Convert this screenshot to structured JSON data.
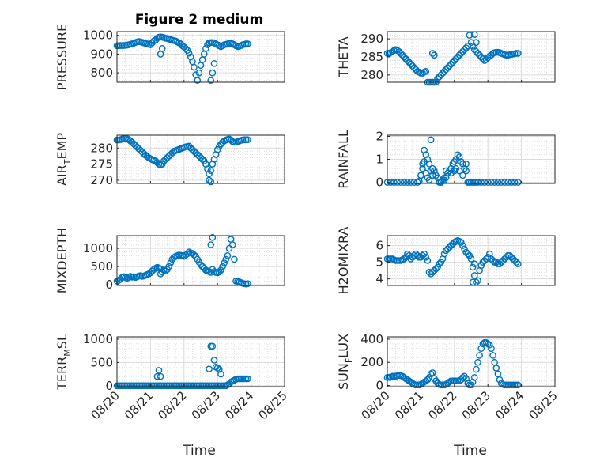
{
  "figure": {
    "title": "Figure 2 medium",
    "xlabel": "Time",
    "x_ticks": [
      "08/20",
      "08/21",
      "08/22",
      "08/23",
      "08/24",
      "08/25"
    ],
    "marker_color": "#0072BD"
  },
  "chart_data": [
    {
      "type": "scatter",
      "ylabel": "PRESSURE",
      "yticks": [
        800,
        900,
        1000
      ],
      "ylim": [
        750,
        1020
      ],
      "x": [
        0.0,
        0.05,
        0.1,
        0.15,
        0.2,
        0.25,
        0.3,
        0.35,
        0.4,
        0.45,
        0.5,
        0.55,
        0.6,
        0.65,
        0.7,
        0.75,
        0.8,
        0.85,
        0.9,
        0.95,
        1.0,
        1.05,
        1.1,
        1.15,
        1.2,
        1.25,
        1.3,
        1.35,
        1.4,
        1.45,
        1.5,
        1.55,
        1.6,
        1.65,
        1.7,
        1.75,
        1.8,
        1.85,
        1.9,
        1.95,
        2.0,
        2.05,
        2.1,
        2.15,
        2.2,
        2.25,
        2.3,
        2.35,
        2.4,
        2.45,
        2.5,
        2.55,
        2.6,
        2.65,
        2.7,
        2.75,
        2.8,
        2.85,
        2.9,
        2.95,
        3.0,
        3.05,
        3.1,
        3.15,
        3.2,
        3.25,
        3.3,
        3.35,
        3.4,
        3.45,
        3.5,
        3.55,
        3.6,
        3.65,
        3.7,
        3.75,
        3.8,
        3.85,
        3.9,
        1.3,
        1.35,
        2.8,
        2.85,
        2.9
      ],
      "values": [
        945,
        945,
        946,
        946,
        946,
        947,
        948,
        950,
        953,
        955,
        958,
        962,
        965,
        967,
        966,
        963,
        960,
        957,
        955,
        952,
        950,
        960,
        970,
        975,
        985,
        990,
        992,
        990,
        988,
        985,
        983,
        980,
        978,
        975,
        972,
        970,
        965,
        960,
        955,
        945,
        938,
        930,
        920,
        905,
        885,
        860,
        830,
        790,
        760,
        800,
        840,
        870,
        900,
        930,
        950,
        960,
        962,
        962,
        960,
        955,
        950,
        945,
        940,
        945,
        950,
        952,
        955,
        958,
        958,
        955,
        950,
        945,
        940,
        942,
        946,
        950,
        952,
        955,
        955,
        900,
        930,
        760,
        800,
        850
      ]
    },
    {
      "type": "scatter",
      "ylabel": "THETA",
      "yticks": [
        280,
        285,
        290
      ],
      "ylim": [
        278,
        292
      ],
      "x": [
        0.0,
        0.05,
        0.1,
        0.15,
        0.2,
        0.25,
        0.3,
        0.35,
        0.4,
        0.45,
        0.5,
        0.55,
        0.6,
        0.65,
        0.7,
        0.75,
        0.8,
        0.85,
        0.9,
        0.95,
        1.0,
        1.05,
        1.1,
        1.15,
        1.2,
        1.25,
        1.3,
        1.35,
        1.4,
        1.45,
        1.5,
        1.55,
        1.6,
        1.65,
        1.7,
        1.75,
        1.8,
        1.85,
        1.9,
        1.95,
        2.0,
        2.05,
        2.1,
        2.15,
        2.2,
        2.25,
        2.3,
        2.35,
        2.4,
        2.45,
        2.5,
        2.55,
        2.6,
        2.65,
        2.7,
        2.75,
        2.8,
        2.85,
        2.9,
        2.95,
        3.0,
        3.05,
        3.1,
        3.15,
        3.2,
        3.25,
        3.3,
        3.35,
        3.4,
        3.45,
        3.5,
        3.55,
        3.6,
        3.65,
        3.7,
        3.75,
        3.8,
        3.85,
        3.9,
        1.35,
        1.4,
        2.6,
        2.65
      ],
      "values": [
        286,
        286,
        286.2,
        286.5,
        286.8,
        287,
        286.8,
        286.5,
        286,
        285.5,
        285,
        284.5,
        284,
        283.5,
        283,
        282.5,
        282,
        281.5,
        281,
        280.8,
        280.5,
        280.5,
        280.8,
        281,
        278,
        277.5,
        277.3,
        277.3,
        277.5,
        278,
        279,
        279.5,
        280,
        280.5,
        281,
        281.5,
        282,
        282.5,
        283,
        283.5,
        284,
        284.5,
        285,
        285.5,
        286,
        286.5,
        287,
        287.5,
        288,
        291,
        289,
        288,
        287,
        286.5,
        286,
        285.5,
        285,
        284.5,
        284,
        284.3,
        284.8,
        285.2,
        285.5,
        286,
        286.2,
        286.3,
        286.3,
        286.2,
        286,
        285.8,
        285.6,
        285.5,
        285.5,
        285.6,
        285.7,
        285.8,
        285.9,
        286,
        286,
        286,
        285.5,
        291.2,
        289
      ]
    },
    {
      "type": "scatter",
      "ylabel": "AIR_TEMP",
      "yticks": [
        270,
        275,
        280
      ],
      "ylim": [
        269,
        284
      ],
      "x": [
        0.0,
        0.05,
        0.1,
        0.15,
        0.2,
        0.25,
        0.3,
        0.35,
        0.4,
        0.45,
        0.5,
        0.55,
        0.6,
        0.65,
        0.7,
        0.75,
        0.8,
        0.85,
        0.9,
        0.95,
        1.0,
        1.05,
        1.1,
        1.15,
        1.2,
        1.25,
        1.3,
        1.35,
        1.4,
        1.45,
        1.5,
        1.55,
        1.6,
        1.65,
        1.7,
        1.75,
        1.8,
        1.85,
        1.9,
        1.95,
        2.0,
        2.05,
        2.1,
        2.15,
        2.2,
        2.25,
        2.3,
        2.35,
        2.4,
        2.45,
        2.5,
        2.55,
        2.6,
        2.65,
        2.7,
        2.75,
        2.8,
        2.85,
        2.9,
        2.95,
        3.0,
        3.05,
        3.1,
        3.15,
        3.2,
        3.25,
        3.3,
        3.35,
        3.4,
        3.45,
        3.5,
        3.55,
        3.6,
        3.65,
        3.7,
        3.75,
        3.8,
        3.85,
        3.9,
        2.75,
        2.8
      ],
      "values": [
        282.5,
        282.5,
        282.6,
        282.8,
        283,
        283,
        282.9,
        282.6,
        282.2,
        281.8,
        281.3,
        280.8,
        280.3,
        279.8,
        279.3,
        278.8,
        278.3,
        277.8,
        277.4,
        277,
        276.7,
        276.4,
        276.2,
        276,
        275.5,
        275,
        274.8,
        275,
        276,
        276.5,
        277,
        277.5,
        278,
        278.5,
        279,
        279.2,
        279.4,
        279.6,
        279.8,
        280,
        280.2,
        280.4,
        280.5,
        280.6,
        280,
        279.5,
        279,
        278.5,
        278,
        277.5,
        277,
        276.5,
        276,
        275,
        273.5,
        272,
        273,
        275,
        276.5,
        278,
        279.5,
        280.5,
        281.2,
        281.8,
        282.2,
        282.5,
        282.7,
        282.8,
        282.5,
        282,
        281.8,
        281.8,
        282,
        282.2,
        282.4,
        282.5,
        282.6,
        282.6,
        282.6,
        270,
        269.5
      ]
    },
    {
      "type": "scatter",
      "ylabel": "RAINFALL",
      "yticks": [
        0,
        1,
        2
      ],
      "ylim": [
        -0.05,
        2.05
      ],
      "x": [
        0.0,
        0.1,
        0.2,
        0.3,
        0.4,
        0.5,
        0.6,
        0.7,
        0.8,
        0.9,
        1.0,
        1.05,
        1.1,
        1.15,
        1.2,
        1.25,
        1.3,
        1.35,
        1.4,
        1.45,
        1.5,
        1.55,
        1.6,
        1.65,
        1.7,
        1.75,
        1.8,
        1.85,
        1.9,
        1.95,
        2.0,
        2.05,
        2.1,
        2.15,
        2.2,
        2.25,
        2.3,
        2.35,
        2.4,
        2.45,
        2.5,
        2.55,
        2.6,
        2.65,
        2.7,
        2.8,
        2.9,
        3.0,
        3.1,
        3.2,
        3.3,
        3.4,
        3.5,
        3.6,
        3.7,
        3.8,
        3.9,
        0.95,
        1.0,
        1.05,
        1.1,
        1.15,
        1.2,
        1.25,
        1.3,
        1.35,
        1.6,
        1.7,
        1.75,
        1.9,
        2.0,
        2.05,
        2.15,
        2.25,
        2.35
      ],
      "values": [
        0,
        0,
        0,
        0,
        0,
        0,
        0,
        0,
        0,
        0,
        0.3,
        0.8,
        1.4,
        1.2,
        1.0,
        0.8,
        1.85,
        0.6,
        0.5,
        0.3,
        0.2,
        0,
        0,
        0.1,
        0.2,
        0.5,
        0.4,
        0.5,
        0.6,
        0.8,
        0.9,
        1.0,
        1.2,
        1.1,
        0.9,
        0.8,
        0.6,
        0.5,
        0,
        0,
        0,
        0,
        0,
        0,
        0,
        0,
        0,
        0,
        0,
        0,
        0,
        0,
        0,
        0,
        0,
        0,
        0,
        0.05,
        0.3,
        0.6,
        0.9,
        0.4,
        0.2,
        0.1,
        0.5,
        0.3,
        0,
        0.1,
        0.2,
        0.4,
        0.5,
        0.6,
        0.5,
        0.3,
        0.8
      ]
    },
    {
      "type": "scatter",
      "ylabel": "MIXDEPTH",
      "yticks": [
        0,
        500,
        1000
      ],
      "ylim": [
        -20,
        1350
      ],
      "x": [
        0.0,
        0.05,
        0.1,
        0.15,
        0.2,
        0.25,
        0.3,
        0.35,
        0.4,
        0.45,
        0.5,
        0.55,
        0.6,
        0.65,
        0.7,
        0.75,
        0.8,
        0.85,
        0.9,
        0.95,
        1.0,
        1.05,
        1.1,
        1.15,
        1.2,
        1.25,
        1.3,
        1.35,
        1.4,
        1.45,
        1.5,
        1.55,
        1.6,
        1.65,
        1.7,
        1.75,
        1.8,
        1.85,
        1.9,
        1.95,
        2.0,
        2.05,
        2.1,
        2.15,
        2.2,
        2.25,
        2.3,
        2.35,
        2.4,
        2.45,
        2.5,
        2.55,
        2.6,
        2.65,
        2.7,
        2.75,
        2.8,
        2.85,
        2.9,
        2.95,
        3.0,
        3.05,
        3.1,
        3.15,
        3.2,
        3.25,
        3.3,
        3.35,
        3.4,
        3.45,
        3.5,
        3.55,
        3.6,
        3.65,
        3.7,
        3.75,
        3.8,
        3.85,
        3.9,
        1.3,
        1.35,
        2.8,
        2.85
      ],
      "values": [
        100,
        120,
        150,
        200,
        220,
        200,
        180,
        210,
        230,
        210,
        220,
        200,
        220,
        240,
        250,
        230,
        240,
        260,
        280,
        300,
        330,
        380,
        420,
        450,
        480,
        460,
        300,
        350,
        400,
        380,
        420,
        500,
        600,
        700,
        750,
        780,
        800,
        820,
        810,
        800,
        780,
        820,
        850,
        900,
        880,
        860,
        820,
        780,
        700,
        620,
        550,
        500,
        450,
        400,
        380,
        360,
        340,
        420,
        360,
        340,
        330,
        350,
        400,
        500,
        600,
        700,
        800,
        1000,
        1250,
        1100,
        700,
        100,
        90,
        80,
        60,
        40,
        30,
        20,
        30,
        440,
        360,
        1100,
        1300
      ]
    },
    {
      "type": "scatter",
      "ylabel": "H2OMIXRA",
      "yticks": [
        4,
        5,
        6
      ],
      "ylim": [
        3.6,
        6.6
      ],
      "x": [
        0.0,
        0.05,
        0.1,
        0.15,
        0.2,
        0.25,
        0.3,
        0.35,
        0.4,
        0.45,
        0.5,
        0.55,
        0.6,
        0.65,
        0.7,
        0.75,
        0.8,
        0.85,
        0.9,
        0.95,
        1.0,
        1.05,
        1.1,
        1.15,
        1.2,
        1.25,
        1.3,
        1.35,
        1.4,
        1.45,
        1.5,
        1.55,
        1.6,
        1.65,
        1.7,
        1.75,
        1.8,
        1.85,
        1.9,
        1.95,
        2.0,
        2.05,
        2.1,
        2.15,
        2.2,
        2.25,
        2.3,
        2.35,
        2.4,
        2.45,
        2.5,
        2.55,
        2.6,
        2.65,
        2.7,
        2.75,
        2.8,
        2.85,
        2.9,
        2.95,
        3.0,
        3.05,
        3.1,
        3.15,
        3.2,
        3.25,
        3.3,
        3.35,
        3.4,
        3.45,
        3.5,
        3.55,
        3.6,
        3.65,
        3.7,
        3.75,
        3.8,
        3.85,
        3.9,
        2.55,
        2.6
      ],
      "values": [
        5.2,
        5.2,
        5.2,
        5.2,
        5.15,
        5.1,
        5.1,
        5.1,
        5.1,
        5.15,
        5.2,
        5.3,
        5.5,
        5.4,
        5.2,
        5.3,
        5.4,
        5.5,
        5.4,
        5.3,
        5.3,
        5.4,
        5.5,
        5.3,
        5.1,
        4.4,
        4.3,
        4.4,
        4.5,
        4.6,
        4.7,
        4.9,
        5.0,
        5.2,
        5.5,
        5.7,
        5.8,
        5.9,
        6.0,
        6.1,
        6.2,
        6.25,
        6.3,
        6.25,
        6.2,
        6.0,
        5.8,
        5.6,
        5.5,
        5.4,
        5.2,
        4.7,
        4.2,
        3.8,
        3.9,
        4.5,
        4.8,
        5.0,
        5.1,
        5.2,
        5.3,
        5.5,
        5.2,
        5.1,
        5.0,
        5.0,
        4.9,
        4.9,
        5.0,
        5.1,
        5.2,
        5.3,
        5.4,
        5.4,
        5.3,
        5.2,
        5.1,
        5.0,
        4.9,
        3.8,
        4.9
      ]
    },
    {
      "type": "scatter",
      "ylabel": "TERR_MSL",
      "yticks": [
        0,
        500,
        1000
      ],
      "ylim": [
        -20,
        1050
      ],
      "x": [
        0.0,
        0.05,
        0.1,
        0.15,
        0.2,
        0.25,
        0.3,
        0.35,
        0.4,
        0.45,
        0.5,
        0.55,
        0.6,
        0.65,
        0.7,
        0.75,
        0.8,
        0.85,
        0.9,
        0.95,
        1.0,
        1.05,
        1.1,
        1.15,
        1.2,
        1.25,
        1.3,
        1.35,
        1.4,
        1.45,
        1.5,
        1.55,
        1.6,
        1.65,
        1.7,
        1.75,
        1.8,
        1.85,
        1.9,
        1.95,
        2.0,
        2.05,
        2.1,
        2.15,
        2.2,
        2.25,
        2.3,
        2.35,
        2.4,
        2.45,
        2.5,
        2.55,
        2.6,
        2.65,
        2.7,
        2.75,
        2.8,
        2.85,
        2.9,
        2.95,
        3.0,
        3.05,
        3.1,
        3.15,
        3.2,
        3.25,
        3.3,
        3.35,
        3.4,
        3.45,
        3.5,
        3.55,
        3.6,
        3.65,
        3.7,
        3.75,
        3.8,
        3.85,
        3.9,
        1.2,
        1.25,
        1.3,
        2.75,
        2.8,
        2.85,
        2.9,
        2.95,
        3.0,
        3.05,
        3.1
      ],
      "values": [
        0,
        0,
        0,
        0,
        0,
        0,
        0,
        0,
        0,
        0,
        0,
        0,
        0,
        0,
        0,
        0,
        0,
        0,
        0,
        0,
        0,
        0,
        0,
        0,
        0,
        0,
        0,
        0,
        0,
        0,
        0,
        0,
        0,
        0,
        0,
        0,
        0,
        0,
        0,
        0,
        0,
        0,
        0,
        0,
        0,
        0,
        0,
        0,
        0,
        0,
        0,
        0,
        0,
        0,
        0,
        0,
        0,
        0,
        0,
        0,
        0,
        0,
        0,
        0,
        0,
        0,
        20,
        40,
        80,
        100,
        120,
        140,
        150,
        150,
        150,
        150,
        150,
        150,
        150,
        200,
        330,
        200,
        360,
        850,
        850,
        550,
        400,
        380,
        350,
        250
      ]
    },
    {
      "type": "scatter",
      "ylabel": "SUN_FLUX",
      "yticks": [
        0,
        200,
        400
      ],
      "ylim": [
        -10,
        420
      ],
      "x": [
        0.0,
        0.05,
        0.1,
        0.15,
        0.2,
        0.25,
        0.3,
        0.35,
        0.4,
        0.45,
        0.5,
        0.55,
        0.6,
        0.65,
        0.7,
        0.75,
        0.8,
        0.85,
        0.9,
        0.95,
        1.0,
        1.05,
        1.1,
        1.15,
        1.2,
        1.25,
        1.3,
        1.35,
        1.4,
        1.45,
        1.5,
        1.55,
        1.6,
        1.65,
        1.7,
        1.75,
        1.8,
        1.85,
        1.9,
        1.95,
        2.0,
        2.05,
        2.1,
        2.15,
        2.2,
        2.25,
        2.3,
        2.35,
        2.4,
        2.45,
        2.5,
        2.55,
        2.6,
        2.65,
        2.7,
        2.75,
        2.8,
        2.85,
        2.9,
        2.95,
        3.0,
        3.05,
        3.1,
        3.15,
        3.2,
        3.25,
        3.3,
        3.35,
        3.4,
        3.45,
        3.5,
        3.55,
        3.6,
        3.65,
        3.7,
        3.75,
        3.8,
        3.85,
        3.9
      ],
      "values": [
        70,
        70,
        75,
        80,
        80,
        80,
        85,
        90,
        85,
        80,
        70,
        60,
        50,
        40,
        30,
        20,
        10,
        5,
        5,
        5,
        10,
        20,
        30,
        40,
        50,
        70,
        100,
        110,
        60,
        40,
        20,
        10,
        5,
        5,
        5,
        10,
        20,
        30,
        40,
        40,
        40,
        40,
        40,
        40,
        50,
        70,
        80,
        60,
        20,
        5,
        5,
        30,
        70,
        140,
        200,
        260,
        320,
        360,
        370,
        370,
        360,
        350,
        320,
        260,
        200,
        150,
        100,
        50,
        20,
        10,
        5,
        5,
        5,
        5,
        5,
        5,
        5,
        5,
        5
      ]
    }
  ]
}
